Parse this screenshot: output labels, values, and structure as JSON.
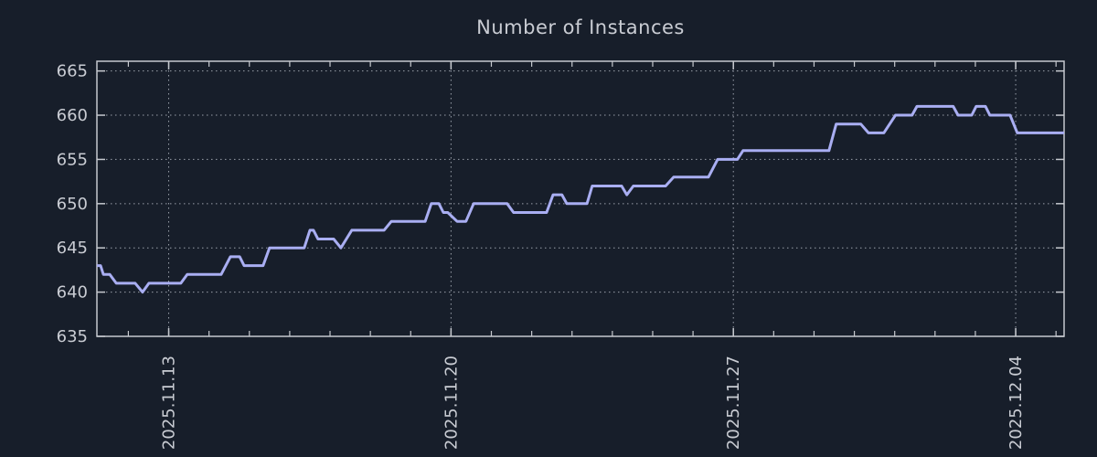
{
  "title": "Number of Instances",
  "colors": {
    "background": "#171e2a",
    "line": "#a9aef2",
    "axis": "#c6c9cf",
    "grid": "#9aa0ab",
    "tick_text": "#c9ccd3",
    "title_text": "#c9ccd3"
  },
  "chart_data": {
    "type": "line",
    "title": "Number of Instances",
    "legend": null,
    "grid": "dotted",
    "x_tick_label_rotation_deg": 90,
    "x_unit": "days from left edge of plot",
    "xlim": [
      0,
      23.98
    ],
    "ylim": [
      635,
      666.1
    ],
    "y_ticks": [
      635,
      640,
      645,
      650,
      655,
      660,
      665
    ],
    "x_ticks": [
      {
        "day": 1.78,
        "label": "2025.11.13"
      },
      {
        "day": 8.78,
        "label": "2025.11.20"
      },
      {
        "day": 15.78,
        "label": "2025.11.27"
      },
      {
        "day": 22.78,
        "label": "2025.12.04"
      }
    ],
    "x_minor_ticks": {
      "start": 0.78,
      "step": 1,
      "end": 23.78
    },
    "series": [
      {
        "name": "instances",
        "points": [
          [
            0.0,
            643
          ],
          [
            0.09,
            643
          ],
          [
            0.16,
            642
          ],
          [
            0.32,
            642
          ],
          [
            0.48,
            641
          ],
          [
            0.95,
            641
          ],
          [
            1.13,
            640
          ],
          [
            1.29,
            641
          ],
          [
            2.08,
            641
          ],
          [
            2.24,
            642
          ],
          [
            3.08,
            642
          ],
          [
            3.31,
            644
          ],
          [
            3.54,
            644
          ],
          [
            3.65,
            643
          ],
          [
            4.12,
            643
          ],
          [
            4.28,
            645
          ],
          [
            5.14,
            645
          ],
          [
            5.28,
            647
          ],
          [
            5.37,
            647
          ],
          [
            5.48,
            646
          ],
          [
            5.87,
            646
          ],
          [
            6.05,
            645
          ],
          [
            6.32,
            647
          ],
          [
            7.12,
            647
          ],
          [
            7.3,
            648
          ],
          [
            8.14,
            648
          ],
          [
            8.29,
            650
          ],
          [
            8.48,
            650
          ],
          [
            8.59,
            649
          ],
          [
            8.7,
            649
          ],
          [
            8.93,
            648
          ],
          [
            9.15,
            648
          ],
          [
            9.34,
            650
          ],
          [
            10.17,
            650
          ],
          [
            10.33,
            649
          ],
          [
            11.15,
            649
          ],
          [
            11.31,
            651
          ],
          [
            11.53,
            651
          ],
          [
            11.65,
            650
          ],
          [
            12.15,
            650
          ],
          [
            12.28,
            652
          ],
          [
            13.01,
            652
          ],
          [
            13.14,
            651
          ],
          [
            13.3,
            652
          ],
          [
            14.1,
            652
          ],
          [
            14.3,
            653
          ],
          [
            15.16,
            653
          ],
          [
            15.39,
            655
          ],
          [
            15.88,
            655
          ],
          [
            16.02,
            656
          ],
          [
            18.15,
            656
          ],
          [
            18.33,
            659
          ],
          [
            18.94,
            659
          ],
          [
            19.13,
            658
          ],
          [
            19.51,
            658
          ],
          [
            19.8,
            660
          ],
          [
            20.21,
            660
          ],
          [
            20.33,
            661
          ],
          [
            21.23,
            661
          ],
          [
            21.35,
            660
          ],
          [
            21.69,
            660
          ],
          [
            21.8,
            661
          ],
          [
            22.03,
            661
          ],
          [
            22.14,
            660
          ],
          [
            22.64,
            660
          ],
          [
            22.82,
            658
          ],
          [
            23.98,
            658
          ]
        ]
      }
    ]
  }
}
